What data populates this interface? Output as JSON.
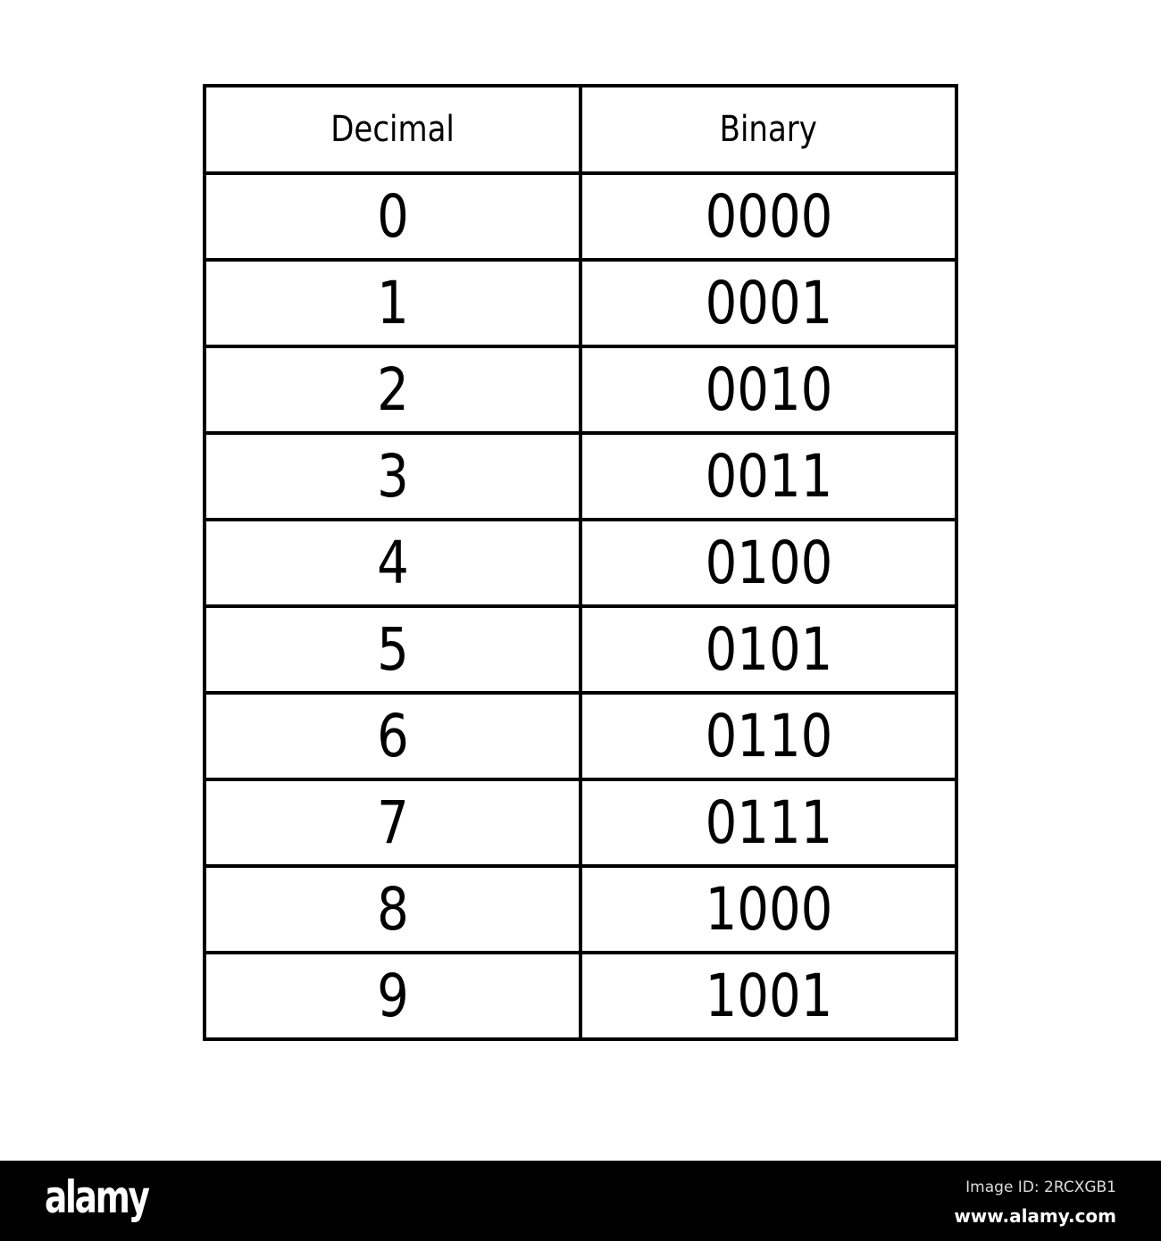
{
  "table": {
    "headers": [
      "Decimal",
      "Binary"
    ],
    "rows": [
      [
        "0",
        "0000"
      ],
      [
        "1",
        "0001"
      ],
      [
        "2",
        "0010"
      ],
      [
        "3",
        "0011"
      ],
      [
        "4",
        "0100"
      ],
      [
        "5",
        "0101"
      ],
      [
        "6",
        "0110"
      ],
      [
        "7",
        "0111"
      ],
      [
        "8",
        "1000"
      ],
      [
        "9",
        "1001"
      ]
    ]
  },
  "watermark": {
    "logo": "alamy",
    "image_id": "Image ID: 2RCXGB1",
    "site": "www.alamy.com"
  }
}
